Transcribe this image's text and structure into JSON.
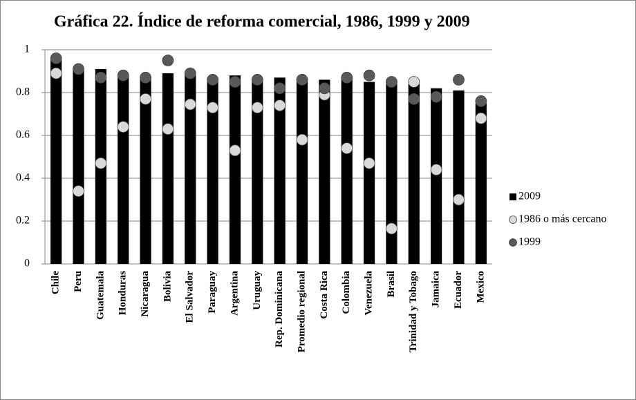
{
  "chart_data": {
    "type": "bar",
    "title": "Gráfica 22.  Índice de reforma comercial, 1986, 1999 y 2009",
    "categories": [
      "Chile",
      "Peru",
      "Guatemala",
      "Honduras",
      "Nicaragua",
      "Bolivia",
      "El Salvador",
      "Paraguay",
      "Argentina",
      "Uruguay",
      "Rep. Dominicana",
      "Promedio regional",
      "Costa Rica",
      "Colombia",
      "Venezuela",
      "Brasil",
      "Trinidad y Tobago",
      "Jamaica",
      "Ecuador",
      "Mexico"
    ],
    "series": [
      {
        "name": "2009",
        "type": "bar",
        "color": "#000000",
        "values": [
          0.96,
          0.91,
          0.91,
          0.88,
          0.87,
          0.89,
          0.89,
          0.87,
          0.88,
          0.86,
          0.87,
          0.86,
          0.86,
          0.87,
          0.85,
          0.85,
          0.84,
          0.82,
          0.81,
          0.75
        ]
      },
      {
        "name": "1986 o más cercano",
        "type": "scatter",
        "color": "#d9d9d9",
        "values": [
          0.89,
          0.34,
          0.47,
          0.64,
          0.77,
          0.63,
          0.745,
          0.73,
          0.53,
          0.73,
          0.74,
          0.58,
          0.79,
          0.54,
          0.47,
          0.165,
          0.85,
          0.44,
          0.3,
          0.68
        ]
      },
      {
        "name": "1999",
        "type": "scatter",
        "color": "#595959",
        "values": [
          0.96,
          0.91,
          0.87,
          0.88,
          0.87,
          0.95,
          0.89,
          0.86,
          0.85,
          0.86,
          0.82,
          0.86,
          0.82,
          0.87,
          0.88,
          0.85,
          0.77,
          0.78,
          0.86,
          0.76
        ]
      }
    ],
    "ylim": [
      0,
      1
    ],
    "yticks": [
      0,
      0.2,
      0.4,
      0.6,
      0.8,
      1
    ],
    "grid": true,
    "legend": "right"
  }
}
